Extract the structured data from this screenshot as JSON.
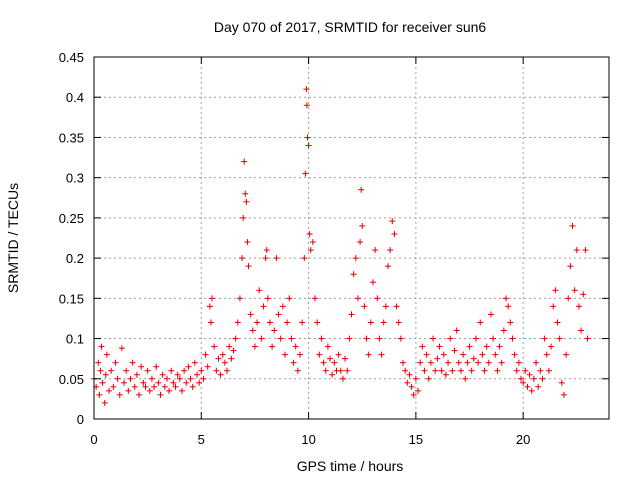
{
  "chart_data": {
    "type": "scatter",
    "title": "Day 070 of 2017, SRMTID for receiver sun6",
    "xlabel": "GPS time / hours",
    "ylabel": "SRMTID / TECUs",
    "xlim": [
      0,
      24
    ],
    "ylim": [
      0,
      0.45
    ],
    "xticks": [
      0,
      5,
      10,
      15,
      20
    ],
    "xtick_labels": [
      "0",
      "5",
      "10",
      "15",
      "20"
    ],
    "yticks": [
      0,
      0.05,
      0.1,
      0.15,
      0.2,
      0.25,
      0.3,
      0.35,
      0.4,
      0.45
    ],
    "ytick_labels": [
      "0",
      "0.05",
      "0.1",
      "0.15",
      "0.2",
      "0.25",
      "0.3",
      "0.35",
      "0.4",
      "0.45"
    ],
    "grid": true,
    "marker": "+",
    "color": "#e00000",
    "points": [
      [
        0.0,
        0.05
      ],
      [
        0.1,
        0.04
      ],
      [
        0.2,
        0.07
      ],
      [
        0.25,
        0.03
      ],
      [
        0.3,
        0.06
      ],
      [
        0.35,
        0.09
      ],
      [
        0.4,
        0.045
      ],
      [
        0.5,
        0.02
      ],
      [
        0.55,
        0.055
      ],
      [
        0.6,
        0.08
      ],
      [
        0.7,
        0.035
      ],
      [
        0.8,
        0.06
      ],
      [
        0.9,
        0.04
      ],
      [
        1.0,
        0.07
      ],
      [
        1.1,
        0.05
      ],
      [
        1.2,
        0.03
      ],
      [
        1.3,
        0.088
      ],
      [
        1.4,
        0.045
      ],
      [
        1.5,
        0.06
      ],
      [
        1.6,
        0.035
      ],
      [
        1.7,
        0.05
      ],
      [
        1.8,
        0.07
      ],
      [
        1.9,
        0.04
      ],
      [
        2.0,
        0.055
      ],
      [
        2.1,
        0.03
      ],
      [
        2.2,
        0.065
      ],
      [
        2.3,
        0.045
      ],
      [
        2.4,
        0.04
      ],
      [
        2.5,
        0.06
      ],
      [
        2.6,
        0.035
      ],
      [
        2.7,
        0.05
      ],
      [
        2.8,
        0.04
      ],
      [
        2.9,
        0.065
      ],
      [
        3.0,
        0.045
      ],
      [
        3.1,
        0.03
      ],
      [
        3.2,
        0.055
      ],
      [
        3.3,
        0.04
      ],
      [
        3.4,
        0.05
      ],
      [
        3.5,
        0.035
      ],
      [
        3.6,
        0.06
      ],
      [
        3.7,
        0.045
      ],
      [
        3.8,
        0.04
      ],
      [
        3.9,
        0.055
      ],
      [
        4.0,
        0.05
      ],
      [
        4.1,
        0.035
      ],
      [
        4.2,
        0.06
      ],
      [
        4.3,
        0.045
      ],
      [
        4.4,
        0.065
      ],
      [
        4.5,
        0.05
      ],
      [
        4.6,
        0.04
      ],
      [
        4.7,
        0.07
      ],
      [
        4.8,
        0.055
      ],
      [
        4.9,
        0.045
      ],
      [
        5.0,
        0.06
      ],
      [
        5.1,
        0.05
      ],
      [
        5.2,
        0.08
      ],
      [
        5.3,
        0.065
      ],
      [
        5.4,
        0.14
      ],
      [
        5.45,
        0.12
      ],
      [
        5.5,
        0.15
      ],
      [
        5.6,
        0.09
      ],
      [
        5.7,
        0.06
      ],
      [
        5.8,
        0.075
      ],
      [
        5.9,
        0.055
      ],
      [
        6.0,
        0.08
      ],
      [
        6.1,
        0.07
      ],
      [
        6.2,
        0.06
      ],
      [
        6.3,
        0.09
      ],
      [
        6.4,
        0.075
      ],
      [
        6.5,
        0.085
      ],
      [
        6.6,
        0.1
      ],
      [
        6.7,
        0.12
      ],
      [
        6.8,
        0.15
      ],
      [
        6.9,
        0.2
      ],
      [
        6.95,
        0.25
      ],
      [
        7.0,
        0.32
      ],
      [
        7.05,
        0.28
      ],
      [
        7.1,
        0.27
      ],
      [
        7.15,
        0.22
      ],
      [
        7.2,
        0.19
      ],
      [
        7.3,
        0.13
      ],
      [
        7.4,
        0.11
      ],
      [
        7.5,
        0.09
      ],
      [
        7.6,
        0.12
      ],
      [
        7.7,
        0.16
      ],
      [
        7.8,
        0.1
      ],
      [
        7.9,
        0.14
      ],
      [
        8.0,
        0.2
      ],
      [
        8.05,
        0.21
      ],
      [
        8.1,
        0.15
      ],
      [
        8.2,
        0.12
      ],
      [
        8.3,
        0.09
      ],
      [
        8.4,
        0.11
      ],
      [
        8.5,
        0.2
      ],
      [
        8.6,
        0.13
      ],
      [
        8.7,
        0.1
      ],
      [
        8.8,
        0.14
      ],
      [
        8.9,
        0.08
      ],
      [
        9.0,
        0.12
      ],
      [
        9.1,
        0.15
      ],
      [
        9.2,
        0.1
      ],
      [
        9.3,
        0.07
      ],
      [
        9.4,
        0.09
      ],
      [
        9.5,
        0.06
      ],
      [
        9.6,
        0.08
      ],
      [
        9.7,
        0.12
      ],
      [
        9.8,
        0.2
      ],
      [
        9.85,
        0.305
      ],
      [
        9.9,
        0.41
      ],
      [
        9.92,
        0.39
      ],
      [
        9.95,
        0.35
      ],
      [
        10.0,
        0.34
      ],
      [
        10.05,
        0.23
      ],
      [
        10.1,
        0.21
      ],
      [
        10.2,
        0.22
      ],
      [
        10.3,
        0.15
      ],
      [
        10.4,
        0.12
      ],
      [
        10.5,
        0.08
      ],
      [
        10.6,
        0.1
      ],
      [
        10.7,
        0.07
      ],
      [
        10.8,
        0.06
      ],
      [
        10.9,
        0.09
      ],
      [
        11.0,
        0.075
      ],
      [
        11.1,
        0.055
      ],
      [
        11.2,
        0.07
      ],
      [
        11.3,
        0.06
      ],
      [
        11.4,
        0.08
      ],
      [
        11.5,
        0.06
      ],
      [
        11.6,
        0.05
      ],
      [
        11.7,
        0.075
      ],
      [
        11.8,
        0.06
      ],
      [
        11.9,
        0.1
      ],
      [
        12.0,
        0.13
      ],
      [
        12.1,
        0.18
      ],
      [
        12.2,
        0.2
      ],
      [
        12.3,
        0.15
      ],
      [
        12.4,
        0.22
      ],
      [
        12.45,
        0.285
      ],
      [
        12.5,
        0.24
      ],
      [
        12.6,
        0.14
      ],
      [
        12.7,
        0.1
      ],
      [
        12.8,
        0.08
      ],
      [
        12.9,
        0.12
      ],
      [
        13.0,
        0.17
      ],
      [
        13.1,
        0.21
      ],
      [
        13.2,
        0.15
      ],
      [
        13.3,
        0.1
      ],
      [
        13.4,
        0.08
      ],
      [
        13.5,
        0.12
      ],
      [
        13.6,
        0.14
      ],
      [
        13.7,
        0.19
      ],
      [
        13.8,
        0.21
      ],
      [
        13.9,
        0.246
      ],
      [
        14.0,
        0.23
      ],
      [
        14.1,
        0.14
      ],
      [
        14.2,
        0.12
      ],
      [
        14.3,
        0.1
      ],
      [
        14.4,
        0.07
      ],
      [
        14.5,
        0.06
      ],
      [
        14.6,
        0.045
      ],
      [
        14.7,
        0.055
      ],
      [
        14.8,
        0.04
      ],
      [
        14.9,
        0.03
      ],
      [
        15.0,
        0.05
      ],
      [
        15.1,
        0.035
      ],
      [
        15.2,
        0.07
      ],
      [
        15.3,
        0.09
      ],
      [
        15.4,
        0.06
      ],
      [
        15.5,
        0.08
      ],
      [
        15.6,
        0.05
      ],
      [
        15.7,
        0.07
      ],
      [
        15.8,
        0.1
      ],
      [
        15.9,
        0.06
      ],
      [
        16.0,
        0.075
      ],
      [
        16.1,
        0.09
      ],
      [
        16.2,
        0.06
      ],
      [
        16.3,
        0.08
      ],
      [
        16.4,
        0.055
      ],
      [
        16.5,
        0.07
      ],
      [
        16.6,
        0.1
      ],
      [
        16.7,
        0.06
      ],
      [
        16.8,
        0.085
      ],
      [
        16.9,
        0.11
      ],
      [
        17.0,
        0.07
      ],
      [
        17.1,
        0.06
      ],
      [
        17.2,
        0.08
      ],
      [
        17.3,
        0.05
      ],
      [
        17.4,
        0.07
      ],
      [
        17.5,
        0.09
      ],
      [
        17.6,
        0.06
      ],
      [
        17.7,
        0.075
      ],
      [
        17.8,
        0.1
      ],
      [
        17.9,
        0.07
      ],
      [
        18.0,
        0.12
      ],
      [
        18.1,
        0.08
      ],
      [
        18.2,
        0.06
      ],
      [
        18.3,
        0.09
      ],
      [
        18.4,
        0.07
      ],
      [
        18.5,
        0.13
      ],
      [
        18.6,
        0.1
      ],
      [
        18.7,
        0.08
      ],
      [
        18.8,
        0.06
      ],
      [
        18.9,
        0.09
      ],
      [
        19.0,
        0.07
      ],
      [
        19.1,
        0.11
      ],
      [
        19.2,
        0.15
      ],
      [
        19.3,
        0.14
      ],
      [
        19.4,
        0.12
      ],
      [
        19.5,
        0.1
      ],
      [
        19.6,
        0.08
      ],
      [
        19.7,
        0.06
      ],
      [
        19.8,
        0.07
      ],
      [
        19.9,
        0.05
      ],
      [
        20.0,
        0.045
      ],
      [
        20.1,
        0.06
      ],
      [
        20.2,
        0.04
      ],
      [
        20.3,
        0.055
      ],
      [
        20.4,
        0.035
      ],
      [
        20.5,
        0.05
      ],
      [
        20.6,
        0.07
      ],
      [
        20.7,
        0.04
      ],
      [
        20.8,
        0.06
      ],
      [
        20.9,
        0.05
      ],
      [
        21.0,
        0.1
      ],
      [
        21.1,
        0.08
      ],
      [
        21.2,
        0.06
      ],
      [
        21.3,
        0.09
      ],
      [
        21.4,
        0.14
      ],
      [
        21.5,
        0.16
      ],
      [
        21.6,
        0.12
      ],
      [
        21.7,
        0.1
      ],
      [
        21.8,
        0.045
      ],
      [
        21.9,
        0.03
      ],
      [
        22.0,
        0.08
      ],
      [
        22.1,
        0.15
      ],
      [
        22.2,
        0.19
      ],
      [
        22.3,
        0.24
      ],
      [
        22.4,
        0.16
      ],
      [
        22.5,
        0.21
      ],
      [
        22.6,
        0.14
      ],
      [
        22.7,
        0.11
      ],
      [
        22.8,
        0.155
      ],
      [
        22.9,
        0.21
      ],
      [
        23.0,
        0.1
      ]
    ]
  }
}
